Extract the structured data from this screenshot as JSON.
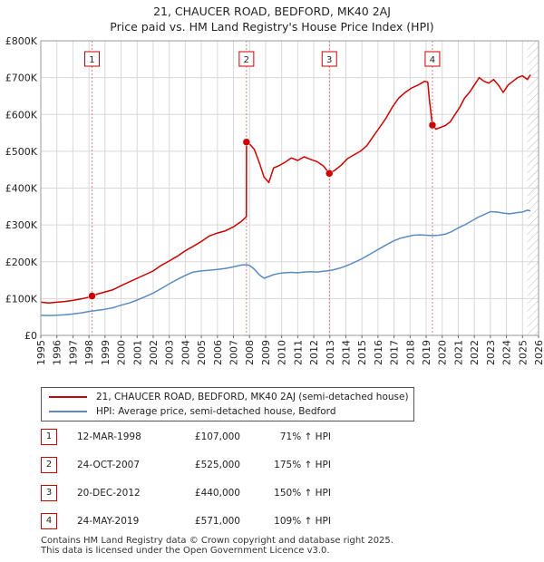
{
  "title": {
    "line1": "21, CHAUCER ROAD, BEDFORD, MK40 2AJ",
    "line2": "Price paid vs. HM Land Registry's House Price Index (HPI)"
  },
  "colors": {
    "property": "#cc0000",
    "hpi": "#5b8bc4",
    "sale_marker": "#cc0000",
    "vline": "#e08080",
    "grid": "#d8d8d8"
  },
  "chart_data": {
    "type": "line",
    "xlim": [
      1995,
      2026
    ],
    "ylim": [
      0,
      800000
    ],
    "y_ticks": [
      0,
      100000,
      200000,
      300000,
      400000,
      500000,
      600000,
      700000,
      800000
    ],
    "y_tick_labels": [
      "£0",
      "£100K",
      "£200K",
      "£300K",
      "£400K",
      "£500K",
      "£600K",
      "£700K",
      "£800K"
    ],
    "x_ticks": [
      1995,
      1996,
      1997,
      1998,
      1999,
      2000,
      2001,
      2002,
      2003,
      2004,
      2005,
      2006,
      2007,
      2008,
      2009,
      2010,
      2011,
      2012,
      2013,
      2014,
      2015,
      2016,
      2017,
      2018,
      2019,
      2020,
      2021,
      2022,
      2023,
      2024,
      2025,
      2026
    ],
    "x_tick_labels": [
      "1995",
      "1996",
      "1997",
      "1998",
      "1999",
      "2000",
      "2001",
      "2002",
      "2003",
      "2004",
      "2005",
      "2006",
      "2007",
      "2008",
      "2009",
      "2010",
      "2011",
      "2012",
      "2013",
      "2014",
      "2015",
      "2016",
      "2017",
      "2018",
      "2019",
      "2020",
      "2021",
      "2022",
      "2023",
      "2024",
      "2025",
      "2026"
    ],
    "grid": true,
    "forecast_start": 2025.3,
    "series": [
      {
        "name": "21, CHAUCER ROAD, BEDFORD, MK40 2AJ (semi-detached house)",
        "color": "#cc0000",
        "x": [
          1995.0,
          1995.5,
          1996.0,
          1996.5,
          1997.0,
          1997.5,
          1998.0,
          1998.19,
          1998.5,
          1999.0,
          1999.5,
          2000.0,
          2000.5,
          2001.0,
          2001.5,
          2002.0,
          2002.5,
          2003.0,
          2003.5,
          2004.0,
          2004.5,
          2005.0,
          2005.5,
          2006.0,
          2006.5,
          2007.0,
          2007.5,
          2007.8,
          2007.81,
          2008.0,
          2008.3,
          2008.6,
          2008.9,
          2009.2,
          2009.5,
          2009.8,
          2010.2,
          2010.6,
          2011.0,
          2011.4,
          2011.8,
          2012.2,
          2012.6,
          2012.97,
          2013.3,
          2013.7,
          2014.1,
          2014.5,
          2014.9,
          2015.3,
          2015.7,
          2016.1,
          2016.5,
          2016.9,
          2017.3,
          2017.7,
          2018.1,
          2018.5,
          2018.9,
          2019.1,
          2019.2,
          2019.39,
          2019.6,
          2019.9,
          2020.2,
          2020.5,
          2020.8,
          2021.1,
          2021.4,
          2021.7,
          2022.0,
          2022.3,
          2022.6,
          2022.9,
          2023.2,
          2023.5,
          2023.8,
          2024.1,
          2024.4,
          2024.7,
          2025.0,
          2025.3,
          2025.5
        ],
        "values": [
          90000,
          88000,
          90000,
          92000,
          95000,
          99000,
          104000,
          107000,
          112000,
          118000,
          124000,
          135000,
          145000,
          155000,
          165000,
          175000,
          190000,
          202000,
          215000,
          230000,
          242000,
          255000,
          270000,
          278000,
          284000,
          295000,
          310000,
          322000,
          525000,
          520000,
          505000,
          470000,
          430000,
          415000,
          455000,
          460000,
          470000,
          482000,
          475000,
          485000,
          478000,
          472000,
          460000,
          440000,
          448000,
          462000,
          480000,
          490000,
          500000,
          515000,
          540000,
          565000,
          590000,
          620000,
          645000,
          660000,
          672000,
          680000,
          690000,
          688000,
          640000,
          571000,
          560000,
          565000,
          570000,
          580000,
          600000,
          620000,
          645000,
          660000,
          680000,
          700000,
          690000,
          685000,
          695000,
          680000,
          660000,
          680000,
          690000,
          700000,
          705000,
          695000,
          708000
        ]
      },
      {
        "name": "HPI: Average price, semi-detached house, Bedford",
        "color": "#5b8bc4",
        "x": [
          1995.0,
          1995.5,
          1996.0,
          1996.5,
          1997.0,
          1997.5,
          1998.0,
          1998.5,
          1999.0,
          1999.5,
          2000.0,
          2000.5,
          2001.0,
          2001.5,
          2002.0,
          2002.5,
          2003.0,
          2003.5,
          2004.0,
          2004.5,
          2005.0,
          2005.5,
          2006.0,
          2006.5,
          2007.0,
          2007.5,
          2007.8,
          2008.0,
          2008.3,
          2008.6,
          2008.9,
          2009.2,
          2009.5,
          2009.8,
          2010.2,
          2010.6,
          2011.0,
          2011.4,
          2011.8,
          2012.2,
          2012.6,
          2013.0,
          2013.4,
          2013.8,
          2014.2,
          2014.6,
          2015.0,
          2015.4,
          2015.8,
          2016.2,
          2016.6,
          2017.0,
          2017.4,
          2017.8,
          2018.2,
          2018.6,
          2019.0,
          2019.4,
          2019.8,
          2020.2,
          2020.6,
          2021.0,
          2021.4,
          2021.8,
          2022.2,
          2022.6,
          2023.0,
          2023.4,
          2023.8,
          2024.2,
          2024.6,
          2025.0,
          2025.3,
          2025.5
        ],
        "values": [
          55000,
          54000,
          55000,
          56000,
          58000,
          61000,
          65000,
          68000,
          71000,
          75000,
          82000,
          88000,
          96000,
          105000,
          115000,
          127000,
          140000,
          152000,
          163000,
          172000,
          175000,
          177000,
          179000,
          182000,
          186000,
          191000,
          192000,
          190000,
          180000,
          165000,
          155000,
          160000,
          165000,
          168000,
          170000,
          171000,
          170000,
          172000,
          173000,
          172000,
          174000,
          176000,
          180000,
          185000,
          192000,
          200000,
          208000,
          218000,
          228000,
          238000,
          248000,
          257000,
          264000,
          268000,
          272000,
          273000,
          272000,
          271000,
          272000,
          275000,
          282000,
          292000,
          300000,
          310000,
          320000,
          328000,
          336000,
          335000,
          332000,
          330000,
          333000,
          335000,
          340000,
          338000
        ]
      }
    ],
    "sales": [
      {
        "label": "1",
        "x": 1998.19,
        "value": 107000
      },
      {
        "label": "2",
        "x": 2007.81,
        "value": 525000
      },
      {
        "label": "3",
        "x": 2012.97,
        "value": 440000
      },
      {
        "label": "4",
        "x": 2019.39,
        "value": 571000
      }
    ]
  },
  "legend": {
    "property_label": "21, CHAUCER ROAD, BEDFORD, MK40 2AJ (semi-detached house)",
    "hpi_label": "HPI: Average price, semi-detached house, Bedford"
  },
  "sales_table": [
    {
      "num": "1",
      "date": "12-MAR-1998",
      "price": "£107,000",
      "hpi": "71% ↑ HPI"
    },
    {
      "num": "2",
      "date": "24-OCT-2007",
      "price": "£525,000",
      "hpi": "175% ↑ HPI"
    },
    {
      "num": "3",
      "date": "20-DEC-2012",
      "price": "£440,000",
      "hpi": "150% ↑ HPI"
    },
    {
      "num": "4",
      "date": "24-MAY-2019",
      "price": "£571,000",
      "hpi": "109% ↑ HPI"
    }
  ],
  "footer": {
    "line1": "Contains HM Land Registry data © Crown copyright and database right 2025.",
    "line2": "This data is licensed under the Open Government Licence v3.0."
  }
}
